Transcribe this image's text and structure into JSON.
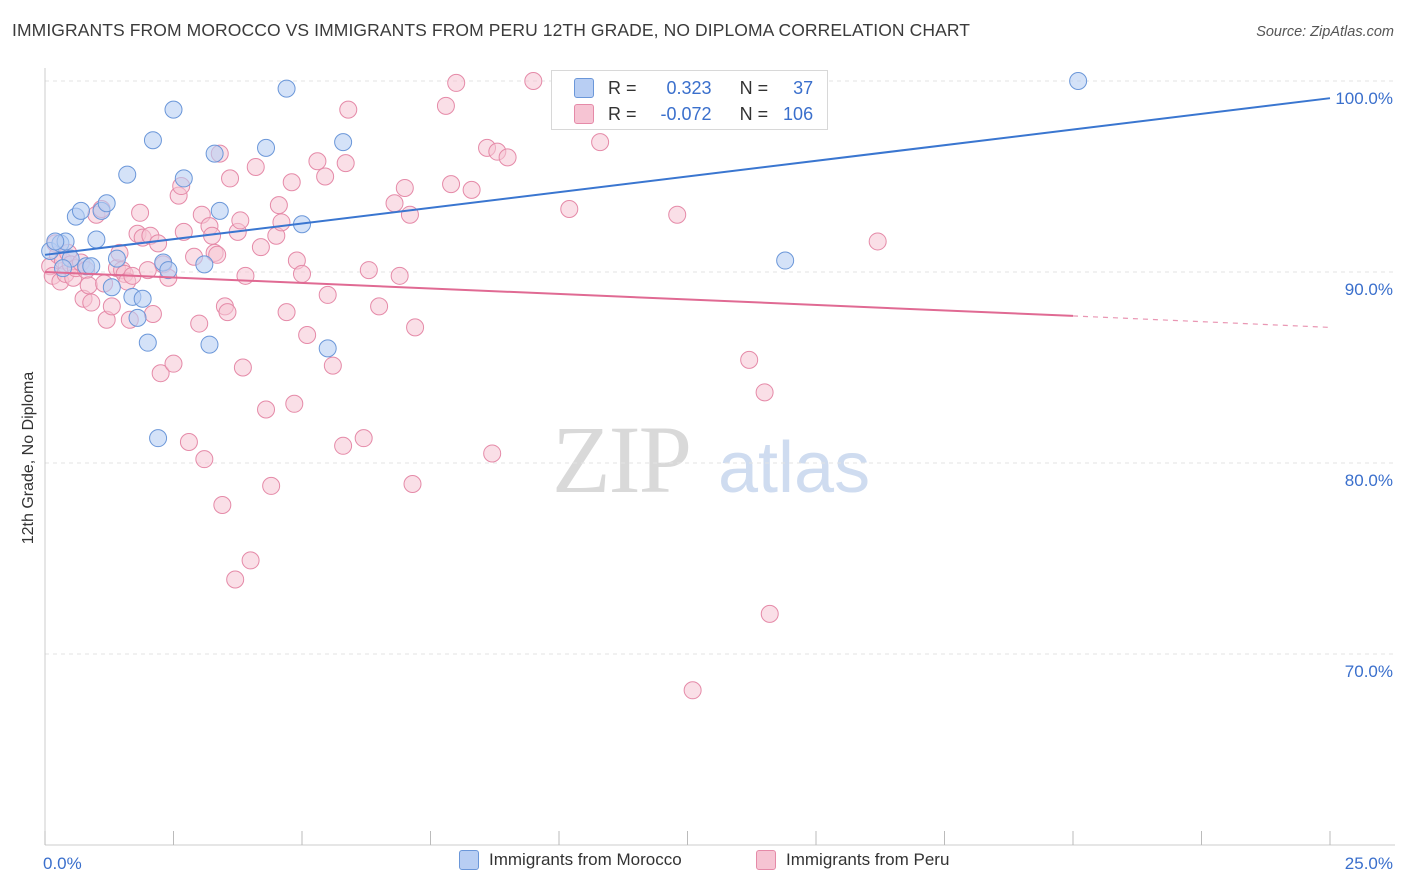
{
  "title": "IMMIGRANTS FROM MOROCCO VS IMMIGRANTS FROM PERU 12TH GRADE, NO DIPLOMA CORRELATION CHART",
  "source": "Source: ZipAtlas.com",
  "watermark": {
    "zip": "ZIP",
    "atlas": "atlas"
  },
  "colors": {
    "morocco_fill": "#b8cef3",
    "morocco_stroke": "#6b97d9",
    "morocco_line": "#3a76d0",
    "peru_fill": "#f6c4d3",
    "peru_stroke": "#e58aa8",
    "peru_line": "#e06a93",
    "grid": "#e3e3e3",
    "tick_label": "#3a6fcc"
  },
  "stats": {
    "morocco": {
      "r_label": "R =",
      "r_value": "0.323",
      "n_label": "N =",
      "n_value": "37"
    },
    "peru": {
      "r_label": "R =",
      "r_value": "-0.072",
      "n_label": "N =",
      "n_value": "106"
    }
  },
  "legend": {
    "morocco": "Immigrants from Morocco",
    "peru": "Immigrants from Peru"
  },
  "chart_data": {
    "type": "scatter",
    "title": "IMMIGRANTS FROM MOROCCO VS IMMIGRANTS FROM PERU 12TH GRADE, NO DIPLOMA CORRELATION CHART",
    "xlabel": "",
    "ylabel": "12th Grade, No Diploma",
    "xlim": [
      0,
      25
    ],
    "ylim": [
      60,
      101.5
    ],
    "x_tick_labels": [
      "0.0%",
      "25.0%"
    ],
    "y_ticks": [
      70,
      80,
      90,
      100
    ],
    "y_tick_labels": [
      "70.0%",
      "80.0%",
      "90.0%",
      "100.0%"
    ],
    "grid": true,
    "legend_position": "bottom",
    "series": [
      {
        "name": "Immigrants from Morocco",
        "trend": {
          "x": [
            0,
            25
          ],
          "y": [
            90.9,
            99.1
          ]
        },
        "points": [
          [
            0.1,
            91.1
          ],
          [
            0.3,
            91.5
          ],
          [
            0.4,
            91.6
          ],
          [
            0.5,
            90.7
          ],
          [
            0.6,
            92.9
          ],
          [
            0.7,
            93.2
          ],
          [
            0.8,
            90.3
          ],
          [
            0.9,
            90.3
          ],
          [
            1.0,
            91.7
          ],
          [
            1.1,
            93.2
          ],
          [
            1.2,
            93.6
          ],
          [
            1.3,
            89.2
          ],
          [
            1.4,
            90.7
          ],
          [
            1.6,
            95.1
          ],
          [
            1.7,
            88.7
          ],
          [
            1.8,
            87.6
          ],
          [
            1.9,
            88.6
          ],
          [
            2.0,
            86.3
          ],
          [
            2.1,
            96.9
          ],
          [
            2.2,
            81.3
          ],
          [
            2.3,
            90.5
          ],
          [
            2.4,
            90.1
          ],
          [
            2.5,
            98.5
          ],
          [
            2.7,
            94.9
          ],
          [
            3.1,
            90.4
          ],
          [
            3.2,
            86.2
          ],
          [
            3.3,
            96.2
          ],
          [
            3.4,
            93.2
          ],
          [
            4.3,
            96.5
          ],
          [
            4.7,
            99.6
          ],
          [
            5.0,
            92.5
          ],
          [
            5.5,
            86.0
          ],
          [
            5.8,
            96.8
          ],
          [
            14.4,
            90.6
          ],
          [
            20.1,
            100.0
          ],
          [
            0.2,
            91.6
          ],
          [
            0.35,
            90.2
          ]
        ]
      },
      {
        "name": "Immigrants from Peru",
        "trend": {
          "x": [
            0,
            20
          ],
          "y": [
            90.0,
            87.7
          ]
        },
        "trend_extension": {
          "x": [
            20,
            25
          ],
          "y": [
            87.7,
            87.1
          ]
        },
        "points": [
          [
            0.1,
            90.3
          ],
          [
            0.15,
            89.8
          ],
          [
            0.2,
            91.5
          ],
          [
            0.25,
            90.9
          ],
          [
            0.3,
            89.5
          ],
          [
            0.35,
            90.6
          ],
          [
            0.4,
            89.9
          ],
          [
            0.45,
            91.0
          ],
          [
            0.5,
            90.4
          ],
          [
            0.55,
            89.7
          ],
          [
            0.6,
            90.2
          ],
          [
            0.7,
            90.5
          ],
          [
            0.75,
            88.6
          ],
          [
            0.8,
            90.1
          ],
          [
            0.85,
            89.3
          ],
          [
            0.9,
            88.4
          ],
          [
            1.0,
            93.0
          ],
          [
            1.1,
            93.3
          ],
          [
            1.15,
            89.4
          ],
          [
            1.2,
            87.5
          ],
          [
            1.3,
            88.2
          ],
          [
            1.4,
            90.2
          ],
          [
            1.45,
            91.0
          ],
          [
            1.5,
            90.1
          ],
          [
            1.55,
            89.9
          ],
          [
            1.6,
            89.5
          ],
          [
            1.65,
            87.5
          ],
          [
            1.7,
            89.8
          ],
          [
            1.8,
            92.0
          ],
          [
            1.85,
            93.1
          ],
          [
            1.9,
            91.8
          ],
          [
            2.0,
            90.1
          ],
          [
            2.05,
            91.9
          ],
          [
            2.1,
            87.8
          ],
          [
            2.2,
            91.5
          ],
          [
            2.25,
            84.7
          ],
          [
            2.3,
            90.4
          ],
          [
            2.4,
            89.7
          ],
          [
            2.5,
            85.2
          ],
          [
            2.6,
            94.0
          ],
          [
            2.65,
            94.5
          ],
          [
            2.7,
            92.1
          ],
          [
            2.8,
            81.1
          ],
          [
            2.9,
            90.8
          ],
          [
            3.0,
            87.3
          ],
          [
            3.05,
            93.0
          ],
          [
            3.1,
            80.2
          ],
          [
            3.2,
            92.4
          ],
          [
            3.25,
            91.9
          ],
          [
            3.3,
            91.0
          ],
          [
            3.35,
            90.9
          ],
          [
            3.4,
            96.2
          ],
          [
            3.45,
            77.8
          ],
          [
            3.5,
            88.2
          ],
          [
            3.55,
            87.9
          ],
          [
            3.6,
            94.9
          ],
          [
            3.7,
            73.9
          ],
          [
            3.75,
            92.1
          ],
          [
            3.8,
            92.7
          ],
          [
            3.85,
            85.0
          ],
          [
            3.9,
            89.8
          ],
          [
            4.0,
            74.9
          ],
          [
            4.1,
            95.5
          ],
          [
            4.2,
            91.3
          ],
          [
            4.3,
            82.8
          ],
          [
            4.4,
            78.8
          ],
          [
            4.5,
            91.9
          ],
          [
            4.55,
            93.5
          ],
          [
            4.6,
            92.6
          ],
          [
            4.7,
            87.9
          ],
          [
            4.8,
            94.7
          ],
          [
            4.85,
            83.1
          ],
          [
            4.9,
            90.6
          ],
          [
            5.0,
            89.9
          ],
          [
            5.1,
            86.7
          ],
          [
            5.3,
            95.8
          ],
          [
            5.45,
            95.0
          ],
          [
            5.5,
            88.8
          ],
          [
            5.6,
            85.1
          ],
          [
            5.8,
            80.9
          ],
          [
            5.85,
            95.7
          ],
          [
            5.9,
            98.5
          ],
          [
            6.2,
            81.3
          ],
          [
            6.3,
            90.1
          ],
          [
            6.5,
            88.2
          ],
          [
            6.8,
            93.6
          ],
          [
            6.9,
            89.8
          ],
          [
            7.0,
            94.4
          ],
          [
            7.1,
            93.0
          ],
          [
            7.15,
            78.9
          ],
          [
            7.2,
            87.1
          ],
          [
            7.8,
            98.7
          ],
          [
            7.9,
            94.6
          ],
          [
            8.0,
            99.9
          ],
          [
            8.3,
            94.3
          ],
          [
            8.6,
            96.5
          ],
          [
            8.7,
            80.5
          ],
          [
            8.8,
            96.3
          ],
          [
            9.0,
            96.0
          ],
          [
            9.5,
            100.0
          ],
          [
            10.2,
            93.3
          ],
          [
            10.8,
            96.8
          ],
          [
            12.3,
            93.0
          ],
          [
            12.6,
            68.1
          ],
          [
            13.7,
            85.4
          ],
          [
            14.0,
            83.7
          ],
          [
            14.1,
            72.1
          ],
          [
            16.2,
            91.6
          ]
        ]
      }
    ]
  }
}
